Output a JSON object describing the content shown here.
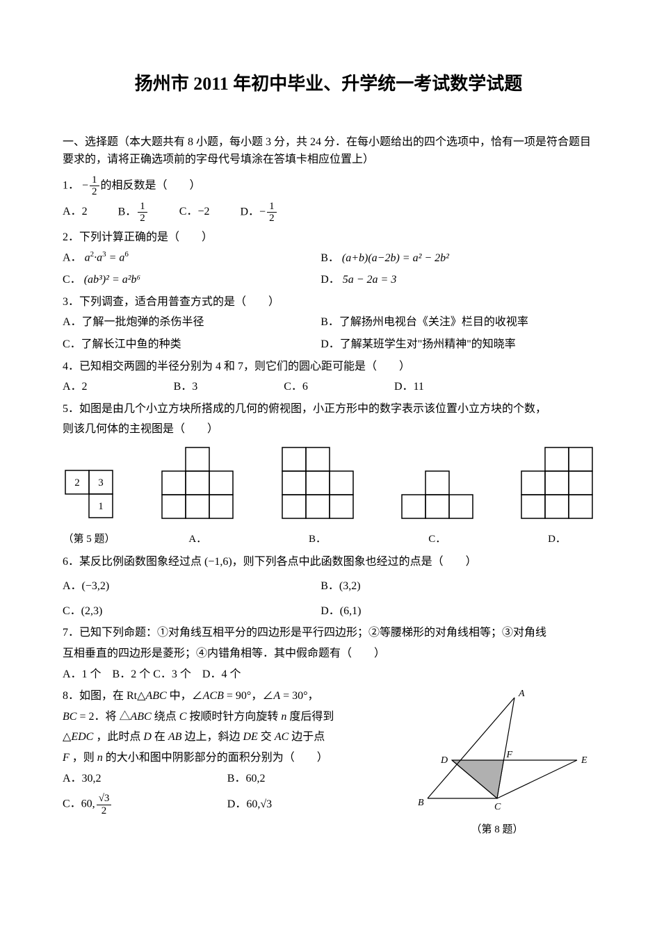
{
  "title": "扬州市 2011 年初中毕业、升学统一考试数学试题",
  "section1_header": "一、选择题（本大题共有 8 小题，每小题 3 分，共 24 分．在每小题给出的四个选项中，恰有一项是符合题目要求的，请将正确选项前的字母代号填涂在答填卡相应位置上）",
  "q1": {
    "num": "1．",
    "text_before": "−",
    "frac_num": "1",
    "frac_den": "2",
    "text_after": "的相反数是（　　）",
    "opts": {
      "a_label": "A．",
      "a_val": "2",
      "b_label": "B．",
      "b_frac_num": "1",
      "b_frac_den": "2",
      "c_label": "C．",
      "c_val": "−2",
      "d_label": "D．",
      "d_prefix": "−",
      "d_frac_num": "1",
      "d_frac_den": "2"
    }
  },
  "q2": {
    "text": "2．下列计算正确的是（　　）",
    "a_label": "A．",
    "a_expr_prefix": "a",
    "a_expr_sup1": "2",
    "a_expr_mid": "·a",
    "a_expr_sup2": "3",
    "a_expr_eq": " = a",
    "a_expr_sup3": "6",
    "b_label": "B．",
    "b_expr": "(a+b)(a−2b) = a² − 2b²",
    "c_label": "C．",
    "c_expr": "(ab³)² = a²b⁶",
    "d_label": "D．",
    "d_expr": "5a − 2a = 3"
  },
  "q3": {
    "text": "3．下列调查，适合用普查方式的是（　　）",
    "a": "A．了解一批炮弹的杀伤半径",
    "b": "B．了解扬州电视台《关注》栏目的收视率",
    "c": "C．了解长江中鱼的种类",
    "d": "D．了解某班学生对\"扬州精神\"的知晓率"
  },
  "q4": {
    "text": "4．已知相交两圆的半径分别为 4 和 7，则它们的圆心距可能是（　　）",
    "a": "A．2",
    "b": "B．3",
    "c": "C．6",
    "d": "D．11"
  },
  "q5": {
    "text1": "5．如图是由几个小立方块所搭成的几何的俯视图，小正方形中的数字表示该位置小立方块的个数，",
    "text2": "则该几何体的主视图是（　　）",
    "caption": "（第 5 题）",
    "top_view": {
      "cells": [
        {
          "r": 0,
          "c": 0,
          "val": "2"
        },
        {
          "r": 0,
          "c": 1,
          "val": "3"
        },
        {
          "r": 1,
          "c": 1,
          "val": "1"
        }
      ],
      "cell_size": 34,
      "rows": 2,
      "cols": 2
    },
    "options": {
      "a_label": "A．",
      "b_label": "B．",
      "c_label": "C．",
      "d_label": "D．",
      "cell_size": 34
    }
  },
  "q6": {
    "text": "6．某反比例函数图象经过点 (−1,6)，则下列各点中此函数图象也经过的点是（　　）",
    "a": "A．(−3,2)",
    "b": "B．(3,2)",
    "c": "C．(2,3)",
    "d": "D．(6,1)"
  },
  "q7": {
    "text1": "7．已知下列命题：①对角线互相平分的四边形是平行四边形；②等腰梯形的对角线相等；③对角线",
    "text2": "互相垂直的四边形是菱形；④内错角相等．其中假命题有（　　）",
    "opts": "A．1 个　B．2 个 C．3 个　D．4 个"
  },
  "q8": {
    "line1_a": "8．如图，在 Rt△",
    "line1_b": "ABC",
    "line1_c": " 中，∠",
    "line1_d": "ACB",
    "line1_e": " = 90°，∠",
    "line1_f": "A",
    "line1_g": " = 30°，",
    "line2_a": "BC",
    "line2_b": " = 2．将 △",
    "line2_c": "ABC",
    "line2_d": " 绕点 ",
    "line2_e": "C",
    "line2_f": " 按顺时针方向旋转 ",
    "line2_g": "n",
    "line2_h": " 度后得到",
    "line3_a": "△",
    "line3_b": "EDC",
    "line3_c": " ，此时点 ",
    "line3_d": "D",
    "line3_e": " 在 ",
    "line3_f": "AB",
    "line3_g": " 边上，斜边 ",
    "line3_h": "DE",
    "line3_i": " 交 ",
    "line3_j": "AC",
    "line3_k": " 边于点",
    "line4_a": "F",
    "line4_b": " ，则 ",
    "line4_c": "n",
    "line4_d": " 的大小和图中阴影部分的面积分别为（　　）",
    "opts": {
      "a": "A．30,2",
      "b": "B．60,2",
      "c_label": "C．60,",
      "c_frac_num": "√3",
      "c_frac_den": "2",
      "d_label": "D．60,",
      "d_val": "√3"
    },
    "caption": "（第 8 题）",
    "svg": {
      "labels": {
        "A": "A",
        "B": "B",
        "C": "C",
        "D": "D",
        "E": "E",
        "F": "F"
      },
      "fill": "#b0b0b0",
      "stroke": "#000000"
    }
  }
}
